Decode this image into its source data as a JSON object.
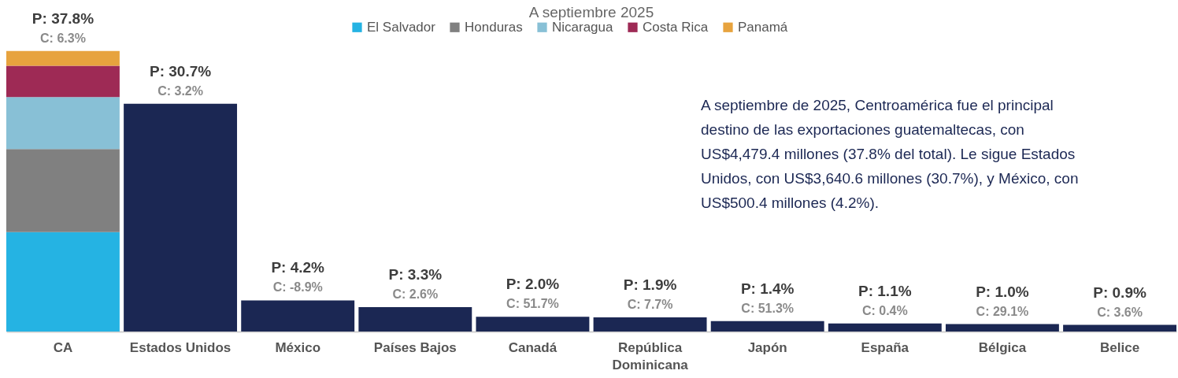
{
  "chart_data": {
    "type": "bar",
    "title": "A septiembre 2025",
    "stacked": true,
    "legend": "top",
    "categories": [
      "CA",
      "Estados Unidos",
      "México",
      "Países Bajos",
      "Canadá",
      "República Dominicana",
      "Japón",
      "España",
      "Bélgica",
      "Belice"
    ],
    "series": [
      {
        "name": "El Salvador",
        "color": "#25b3e3",
        "values": [
          13.4,
          null,
          null,
          null,
          null,
          null,
          null,
          null,
          null,
          null
        ]
      },
      {
        "name": "Honduras",
        "color": "#808080",
        "values": [
          11.2,
          null,
          null,
          null,
          null,
          null,
          null,
          null,
          null,
          null
        ]
      },
      {
        "name": "Nicaragua",
        "color": "#88c0d6",
        "values": [
          7.0,
          null,
          null,
          null,
          null,
          null,
          null,
          null,
          null,
          null
        ]
      },
      {
        "name": "Costa Rica",
        "color": "#9e2a55",
        "values": [
          4.2,
          null,
          null,
          null,
          null,
          null,
          null,
          null,
          null,
          null
        ]
      },
      {
        "name": "Panamá",
        "color": "#e7a33e",
        "values": [
          2.0,
          null,
          null,
          null,
          null,
          null,
          null,
          null,
          null,
          null
        ]
      },
      {
        "color": "#1b2753",
        "values": [
          null,
          30.7,
          4.2,
          3.3,
          2.0,
          1.9,
          1.4,
          1.1,
          1.0,
          0.9
        ],
        "value_labels": [
          null,
          "P: 30.7%",
          "P: 4.2%",
          "P: 3.3%",
          "P: 2.0%",
          "P: 1.9%",
          "P: 1.4%",
          "P: 1.1%",
          "P: 1.0%",
          "P: 0.9%"
        ]
      }
    ],
    "totals": [
      "P: 37.8%",
      null,
      null,
      null,
      null,
      null,
      null,
      null,
      null,
      null
    ],
    "annotations": [
      {
        "text": "C: 6.3%",
        "x": "CA",
        "y": 37.8
      },
      {
        "text": "C: 3.2%",
        "x": "Estados Unidos",
        "y": 30.7
      },
      {
        "text": "C: -8.9%",
        "x": "México",
        "y": 4.2
      },
      {
        "text": "C: 2.6%",
        "x": "Países Bajos",
        "y": 3.3
      },
      {
        "text": "C: 51.7%",
        "x": "Canadá",
        "y": 2.0
      },
      {
        "text": "C: 7.7%",
        "x": "República Dominicana",
        "y": 1.9
      },
      {
        "text": "C: 51.3%",
        "x": "Japón",
        "y": 1.4
      },
      {
        "text": "C: 0.4%",
        "x": "España",
        "y": 1.1
      },
      {
        "text": "C: 29.1%",
        "x": "Bélgica",
        "y": 1.0
      },
      {
        "text": "C: 3.6%",
        "x": "Belice",
        "y": 0.9
      },
      "A septiembre de 2025, Centroamérica fue el principal destino de las exportaciones guatemaltecas, con US$4,479.4 millones (37.8% del total). Le sigue Estados Unidos, con US$3,640.6 millones (30.7%), y México, con US$500.4 millones (4.2%)."
    ]
  }
}
